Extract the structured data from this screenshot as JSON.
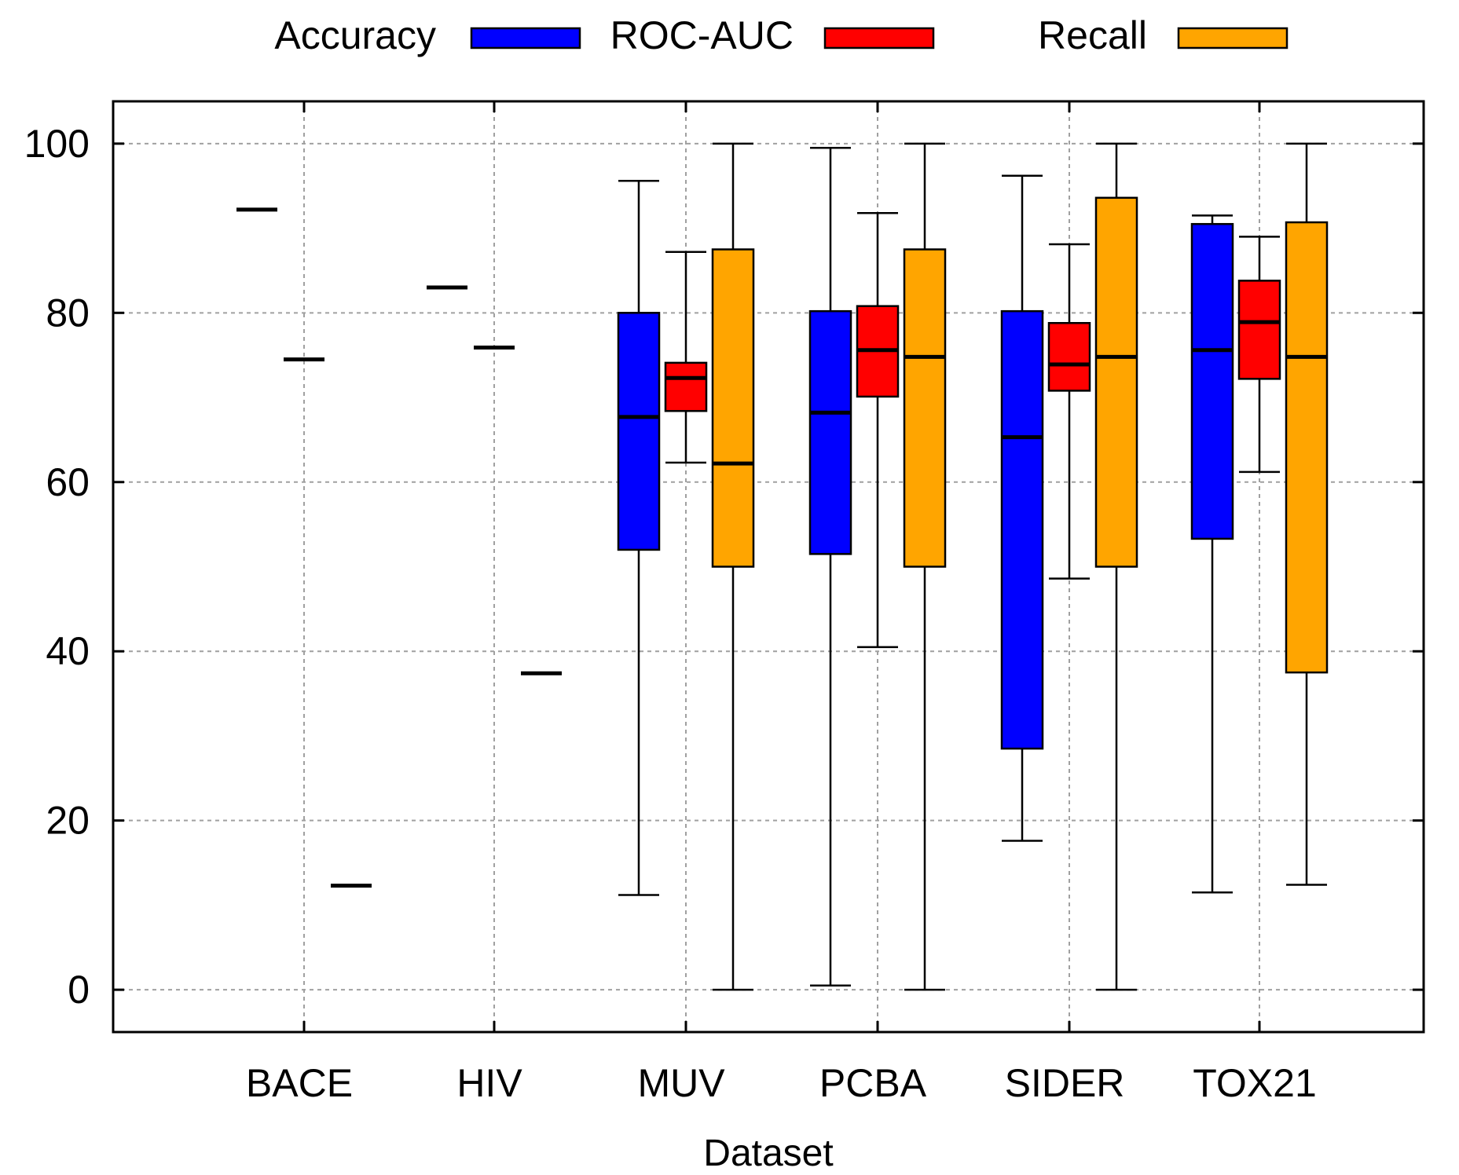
{
  "chart_data": {
    "type": "boxplot",
    "title": "",
    "xlabel": "Dataset",
    "ylabel": "",
    "ylim": [
      -5,
      105
    ],
    "yticks": [
      0,
      20,
      40,
      60,
      80,
      100
    ],
    "grid": true,
    "legend_position": "top",
    "categories": [
      "BACE",
      "HIV",
      "MUV",
      "PCBA",
      "SIDER",
      "TOX21"
    ],
    "series": [
      {
        "name": "Accuracy",
        "color": "#0000ff",
        "boxes": [
          {
            "min": 92.2,
            "q1": 92.2,
            "median": 92.2,
            "q3": 92.2,
            "max": 92.2
          },
          {
            "min": 83.0,
            "q1": 83.0,
            "median": 83.0,
            "q3": 83.0,
            "max": 83.0
          },
          {
            "min": 11.2,
            "q1": 52.0,
            "median": 67.7,
            "q3": 80.0,
            "max": 95.6
          },
          {
            "min": 0.5,
            "q1": 51.5,
            "median": 68.2,
            "q3": 80.2,
            "max": 99.5
          },
          {
            "min": 17.6,
            "q1": 28.5,
            "median": 65.3,
            "q3": 80.2,
            "max": 96.2
          },
          {
            "min": 11.5,
            "q1": 53.3,
            "median": 75.6,
            "q3": 90.5,
            "max": 91.5
          }
        ]
      },
      {
        "name": "ROC-AUC",
        "color": "#ff0000",
        "boxes": [
          {
            "min": 74.5,
            "q1": 74.5,
            "median": 74.5,
            "q3": 74.5,
            "max": 74.5
          },
          {
            "min": 75.9,
            "q1": 75.9,
            "median": 75.9,
            "q3": 75.9,
            "max": 75.9
          },
          {
            "min": 62.3,
            "q1": 68.4,
            "median": 72.3,
            "q3": 74.1,
            "max": 87.2
          },
          {
            "min": 40.5,
            "q1": 70.1,
            "median": 75.6,
            "q3": 80.8,
            "max": 91.8
          },
          {
            "min": 48.6,
            "q1": 70.8,
            "median": 73.9,
            "q3": 78.8,
            "max": 88.1
          },
          {
            "min": 61.2,
            "q1": 72.2,
            "median": 78.9,
            "q3": 83.8,
            "max": 89.0
          }
        ]
      },
      {
        "name": "Recall",
        "color": "#ffa500",
        "boxes": [
          {
            "min": 12.3,
            "q1": 12.3,
            "median": 12.3,
            "q3": 12.3,
            "max": 12.3
          },
          {
            "min": 37.4,
            "q1": 37.4,
            "median": 37.4,
            "q3": 37.4,
            "max": 37.4
          },
          {
            "min": 0.0,
            "q1": 50.0,
            "median": 62.2,
            "q3": 87.5,
            "max": 100.0
          },
          {
            "min": 0.0,
            "q1": 50.0,
            "median": 74.8,
            "q3": 87.5,
            "max": 100.0
          },
          {
            "min": 0.0,
            "q1": 50.0,
            "median": 74.8,
            "q3": 93.6,
            "max": 100.0
          },
          {
            "min": 12.4,
            "q1": 37.5,
            "median": 74.8,
            "q3": 90.7,
            "max": 100.0
          }
        ]
      }
    ]
  }
}
